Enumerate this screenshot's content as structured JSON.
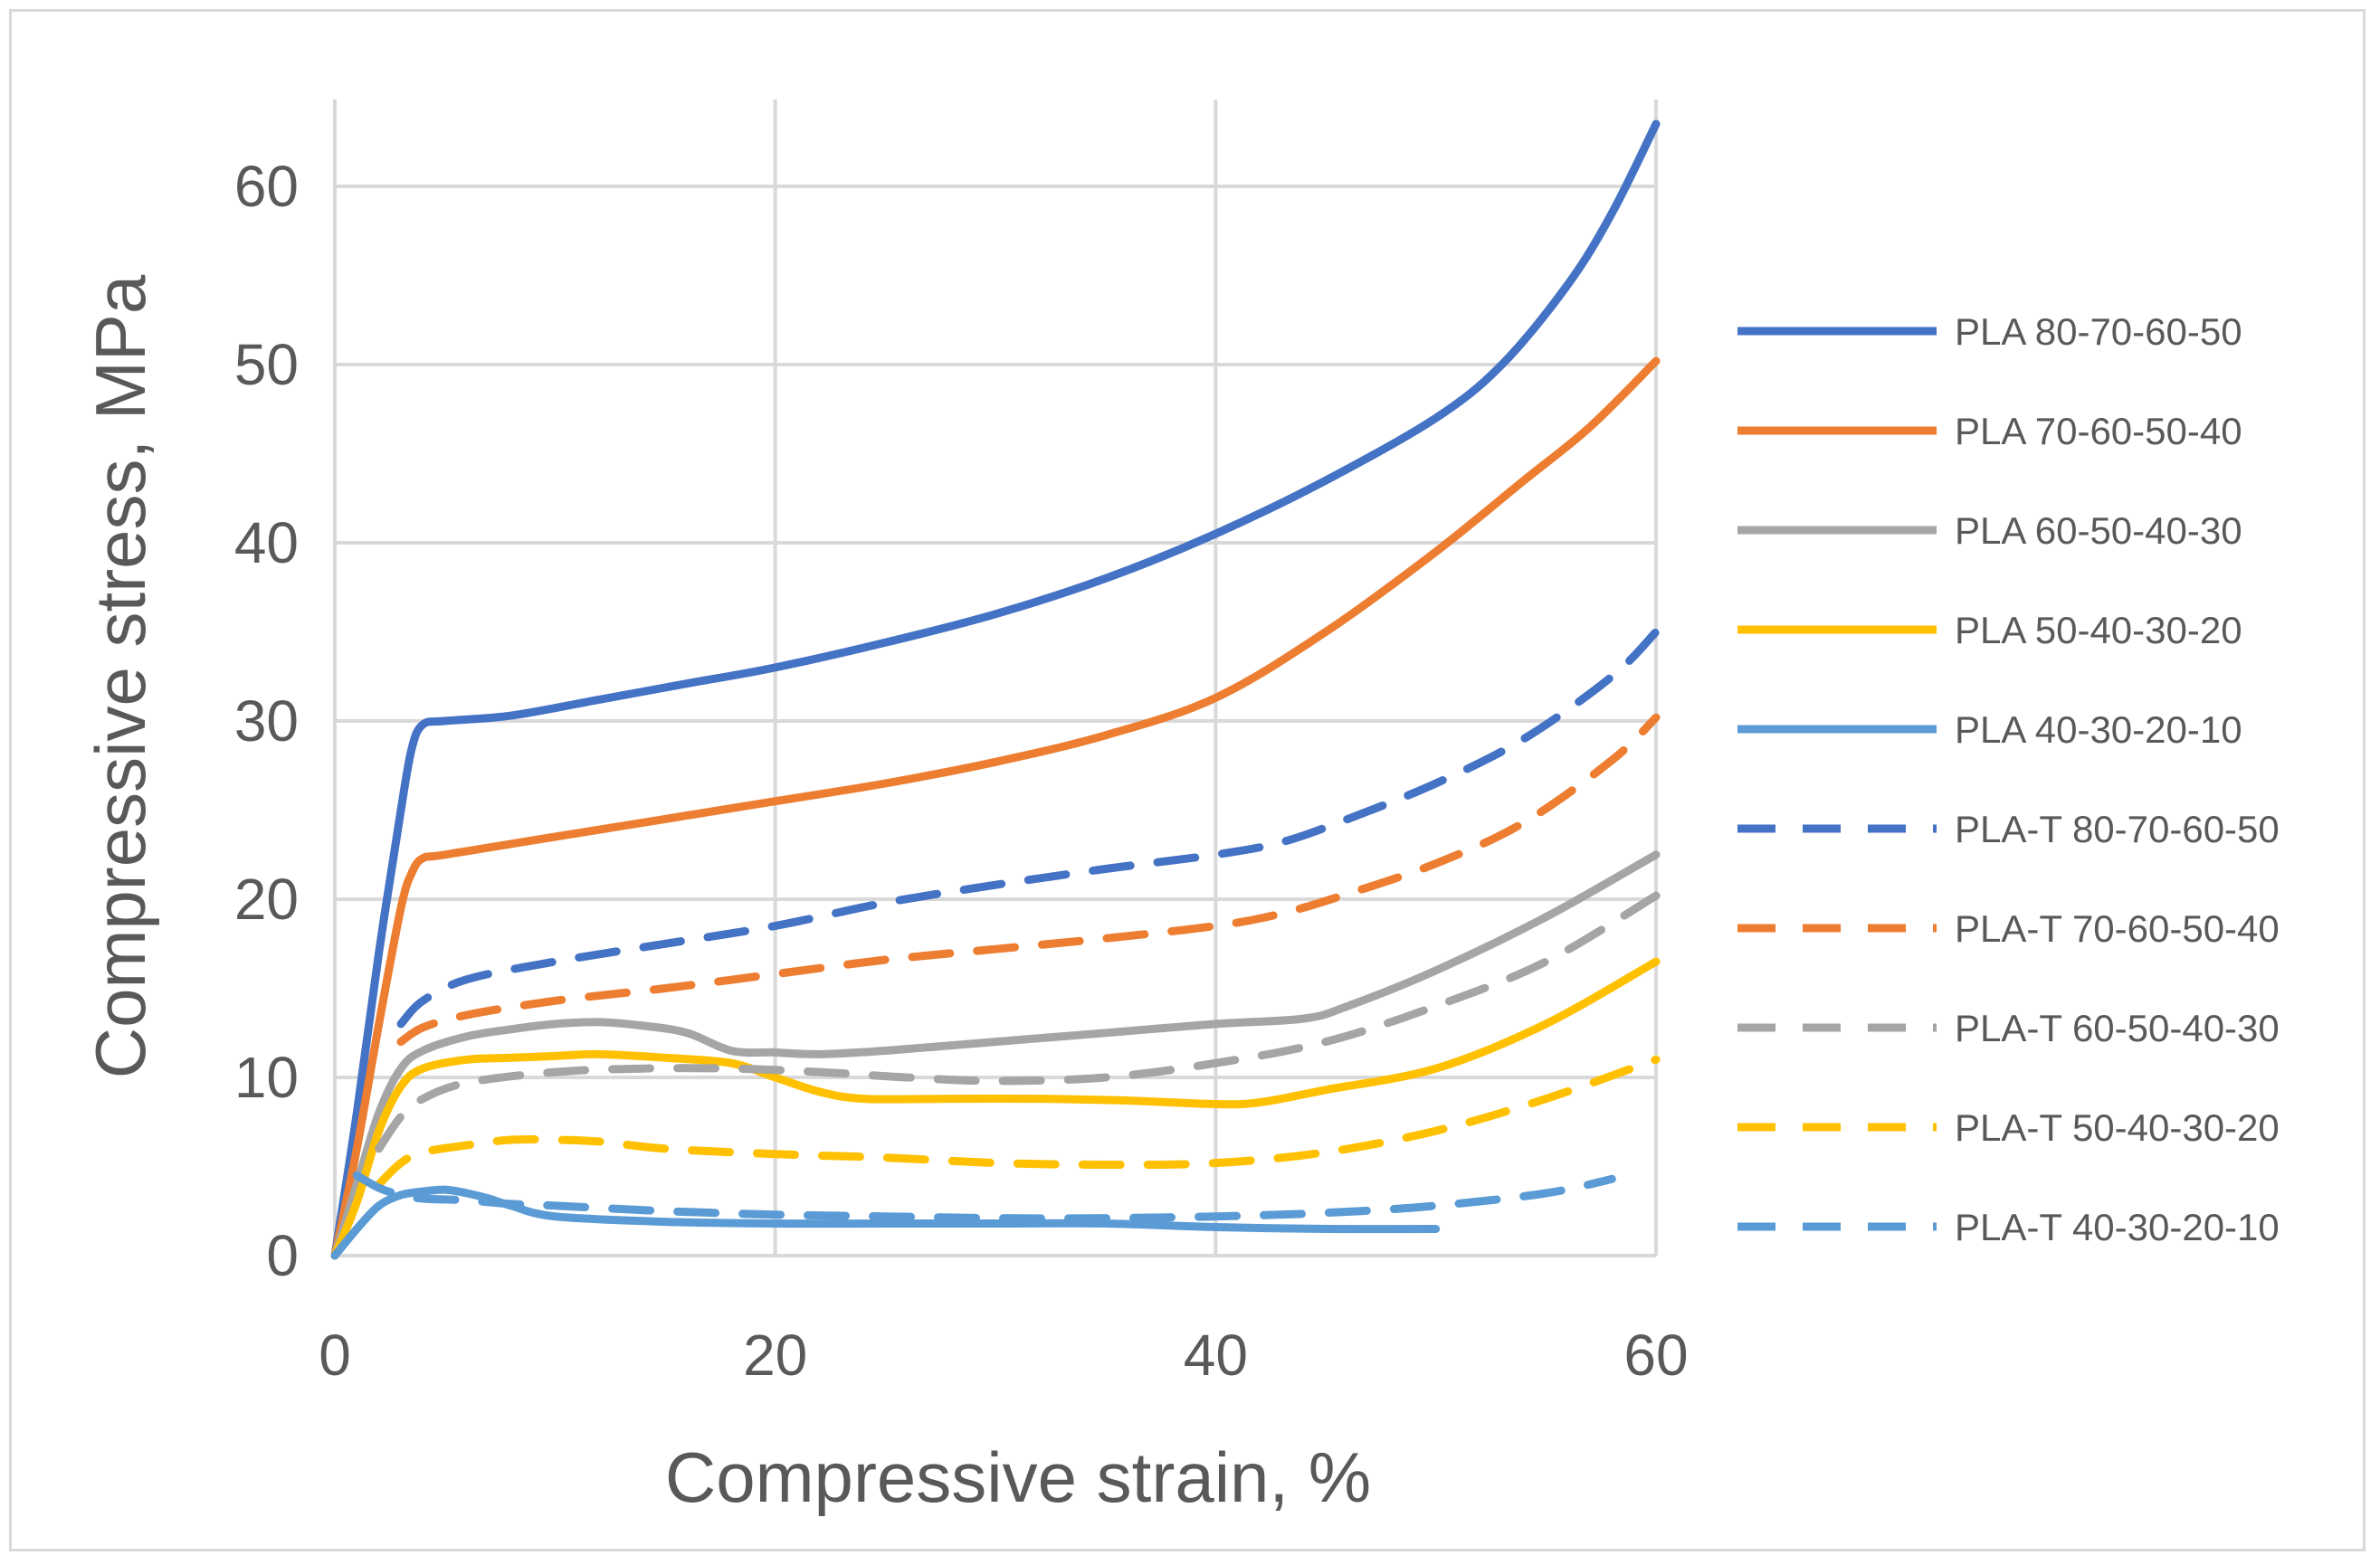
{
  "chart_data": {
    "type": "line",
    "title": "",
    "xlabel": "Compressive strain, %",
    "ylabel": "Compressive stress, MPa",
    "xlim": [
      0,
      60
    ],
    "ylim": [
      0,
      60
    ],
    "xticks": [
      0,
      20,
      40,
      60
    ],
    "yticks": [
      0,
      10,
      20,
      30,
      40,
      50,
      60
    ],
    "grid": true,
    "legend_position": "right",
    "series": [
      {
        "name": "PLA 80-70-60-50",
        "color": "#4472C4",
        "dash": false,
        "x": [
          0,
          1,
          2,
          3,
          3.5,
          4,
          5,
          8,
          12,
          16,
          20,
          25,
          30,
          35,
          40,
          45,
          50,
          53,
          56,
          58,
          60
        ],
        "y": [
          0,
          8,
          17,
          25,
          28.5,
          29.8,
          30,
          30.3,
          31.2,
          32.1,
          33,
          34.4,
          36,
          38,
          40.5,
          43.5,
          47,
          50,
          54.5,
          58.5,
          63.5
        ]
      },
      {
        "name": "PLA 70-60-50-40",
        "color": "#ED7D31",
        "dash": false,
        "x": [
          0,
          1,
          2,
          3,
          3.5,
          4,
          5,
          10,
          15,
          20,
          25,
          30,
          35,
          40,
          45,
          50,
          54,
          57,
          60
        ],
        "y": [
          0,
          6,
          13,
          19.5,
          21.5,
          22.3,
          22.5,
          23.5,
          24.5,
          25.5,
          26.5,
          27.7,
          29.2,
          31.3,
          35,
          39.5,
          43.5,
          46.5,
          50.2
        ]
      },
      {
        "name": "PLA 60-50-40-30",
        "color": "#A5A5A5",
        "dash": false,
        "x": [
          0,
          1,
          2,
          3,
          4,
          6,
          8,
          10,
          12,
          14,
          16,
          18,
          20,
          22,
          25,
          30,
          35,
          40,
          44,
          46,
          50,
          55,
          60
        ],
        "y": [
          0,
          4,
          8,
          10.5,
          11.5,
          12.3,
          12.7,
          13,
          13.1,
          12.9,
          12.5,
          11.5,
          11.4,
          11.3,
          11.5,
          12,
          12.5,
          13,
          13.3,
          14,
          16,
          19,
          22.5
        ]
      },
      {
        "name": "PLA 50-40-30-20",
        "color": "#FFC000",
        "dash": false,
        "x": [
          0,
          1,
          2,
          3,
          4,
          6,
          8,
          10,
          12,
          15,
          18,
          20,
          22,
          24,
          28,
          32,
          36,
          40,
          42,
          45,
          50,
          55,
          60
        ],
        "y": [
          0,
          3,
          7,
          9.5,
          10.5,
          11,
          11.1,
          11.2,
          11.3,
          11.1,
          10.8,
          10,
          9.2,
          8.8,
          8.8,
          8.8,
          8.7,
          8.5,
          8.6,
          9.3,
          10.5,
          13,
          16.5
        ]
      },
      {
        "name": "PLA 40-30-20-10",
        "color": "#5B9BD5",
        "dash": false,
        "x": [
          0,
          1,
          2,
          3,
          4,
          5,
          6,
          7,
          8,
          10,
          15,
          20,
          25,
          30,
          35,
          40,
          45,
          50
        ],
        "y": [
          0,
          1.5,
          2.8,
          3.4,
          3.6,
          3.7,
          3.5,
          3.2,
          2.8,
          2.2,
          1.9,
          1.8,
          1.8,
          1.8,
          1.8,
          1.6,
          1.5,
          1.5
        ]
      },
      {
        "name": "PLA-T 80-70-60-50",
        "color": "#4472C4",
        "dash": true,
        "x": [
          3,
          4,
          6,
          10,
          15,
          20,
          25,
          30,
          35,
          40,
          43,
          46,
          50,
          54,
          58,
          60
        ],
        "y": [
          13,
          14.3,
          15.5,
          16.5,
          17.5,
          18.5,
          19.8,
          20.8,
          21.7,
          22.5,
          23.2,
          24.5,
          26.5,
          29,
          32.5,
          35
        ]
      },
      {
        "name": "PLA-T 70-60-50-40",
        "color": "#ED7D31",
        "dash": true,
        "x": [
          3,
          4,
          6,
          10,
          15,
          20,
          25,
          30,
          35,
          40,
          43,
          46,
          50,
          54,
          58,
          60
        ],
        "y": [
          12,
          12.8,
          13.5,
          14.3,
          15,
          15.8,
          16.6,
          17.2,
          17.8,
          18.5,
          19.2,
          20.3,
          22,
          24.3,
          27.8,
          30.2
        ]
      },
      {
        "name": "PLA-T 60-50-40-30",
        "color": "#A5A5A5",
        "dash": true,
        "x": [
          2,
          3,
          4,
          6,
          10,
          14,
          18,
          22,
          26,
          30,
          35,
          40,
          45,
          50,
          55,
          60
        ],
        "y": [
          6,
          7.8,
          8.8,
          9.7,
          10.3,
          10.5,
          10.5,
          10.3,
          10,
          9.8,
          10,
          10.8,
          12,
          14,
          16.5,
          20.2
        ]
      },
      {
        "name": "PLA-T 50-40-30-20",
        "color": "#FFC000",
        "dash": true,
        "x": [
          2,
          3,
          4,
          6,
          8,
          10,
          12,
          15,
          20,
          25,
          30,
          35,
          40,
          45,
          50,
          55,
          60
        ],
        "y": [
          4,
          5.2,
          5.8,
          6.2,
          6.5,
          6.5,
          6.4,
          6,
          5.7,
          5.5,
          5.2,
          5.1,
          5.2,
          5.8,
          7,
          8.8,
          11
        ]
      },
      {
        "name": "PLA-T 40-30-20-10",
        "color": "#5B9BD5",
        "dash": true,
        "x": [
          1,
          2,
          3,
          4,
          6,
          8,
          10,
          15,
          20,
          25,
          30,
          35,
          40,
          45,
          50,
          55,
          58
        ],
        "y": [
          4.5,
          3.8,
          3.4,
          3.2,
          3.1,
          2.9,
          2.8,
          2.5,
          2.3,
          2.2,
          2.1,
          2.1,
          2.2,
          2.4,
          2.8,
          3.5,
          4.3
        ]
      }
    ]
  }
}
